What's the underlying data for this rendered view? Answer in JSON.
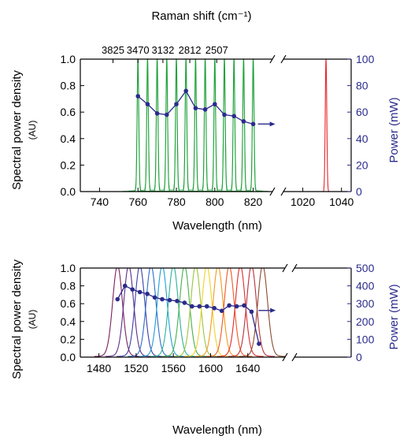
{
  "colors": {
    "axis": "#000000",
    "power": "#2b2b8c",
    "top_series": "#1fa23a",
    "top_ref": "#e8252b",
    "bottom_series": [
      "#7b1f5a",
      "#5b2d8a",
      "#3b3fa6",
      "#2f6cc8",
      "#1e9fd6",
      "#2bb39a",
      "#46b04a",
      "#9ac43a",
      "#f1d227",
      "#f39a1d",
      "#ee5a24",
      "#e02b2b",
      "#b7303b",
      "#8a4a2e"
    ]
  },
  "chart_data": [
    {
      "type": "line",
      "panel": "top",
      "title": "Raman shift (cm⁻¹)",
      "top_axis_ticks": [
        "3825",
        "3470",
        "3132",
        "2812",
        "2507"
      ],
      "top_axis_tick_positions_nm": [
        747,
        760,
        773,
        787,
        801
      ],
      "xlabel": "Wavelength (nm)",
      "ylabel_left": "Spectral power density",
      "ylabel_left_unit": "(AU)",
      "ylabel_right": "Power (mW)",
      "x_segments": [
        [
          730,
          830
        ],
        [
          1010,
          1045
        ]
      ],
      "x_ticks": [
        "740",
        "760",
        "780",
        "800",
        "820",
        "1020",
        "1040"
      ],
      "x_tick_values": [
        740,
        760,
        780,
        800,
        820,
        1020,
        1040
      ],
      "ylim_left": [
        0,
        1.0
      ],
      "y_ticks_left": [
        "0.0",
        "0.2",
        "0.4",
        "0.6",
        "0.8",
        "1.0"
      ],
      "ylim_right": [
        0,
        100
      ],
      "y_ticks_right": [
        "0",
        "20",
        "40",
        "60",
        "80",
        "100"
      ],
      "spectral_peaks_nm": [
        760,
        765,
        770,
        775,
        780,
        785,
        790,
        795,
        800,
        805,
        810,
        815,
        820
      ],
      "reference_peak_nm": 1032,
      "power_series": {
        "x": [
          760,
          765,
          770,
          775,
          780,
          785,
          790,
          795,
          800,
          805,
          810,
          815,
          820
        ],
        "y": [
          72,
          66,
          59,
          58,
          66,
          76,
          63,
          62,
          66,
          58,
          57,
          53,
          51
        ]
      }
    },
    {
      "type": "line",
      "panel": "bottom",
      "xlabel": "Wavelength (nm)",
      "ylabel_left": "Spectral power density",
      "ylabel_left_unit": "(AU)",
      "ylabel_right": "Power (mW)",
      "x_segments": [
        [
          1460,
          1680
        ],
        [
          1680,
          1740
        ]
      ],
      "x_ticks": [
        "1480",
        "1520",
        "1560",
        "1600",
        "1640"
      ],
      "x_tick_values": [
        1480,
        1520,
        1560,
        1600,
        1640
      ],
      "ylim_left": [
        0,
        1.0
      ],
      "y_ticks_left": [
        "0.0",
        "0.2",
        "0.4",
        "0.6",
        "0.8",
        "1.0"
      ],
      "ylim_right": [
        0,
        500
      ],
      "y_ticks_right": [
        "0",
        "100",
        "200",
        "300",
        "400",
        "500"
      ],
      "spectral_peaks_nm": [
        1500,
        1512,
        1524,
        1536,
        1548,
        1560,
        1572,
        1584,
        1596,
        1608,
        1620,
        1632,
        1644,
        1656
      ],
      "power_series": {
        "x": [
          1500,
          1508,
          1516,
          1524,
          1532,
          1540,
          1548,
          1556,
          1564,
          1572,
          1580,
          1588,
          1596,
          1604,
          1612,
          1620,
          1628,
          1636,
          1644,
          1652
        ],
        "y": [
          325,
          400,
          380,
          365,
          355,
          335,
          325,
          320,
          315,
          305,
          285,
          285,
          285,
          275,
          260,
          290,
          285,
          290,
          255,
          75
        ]
      }
    }
  ]
}
